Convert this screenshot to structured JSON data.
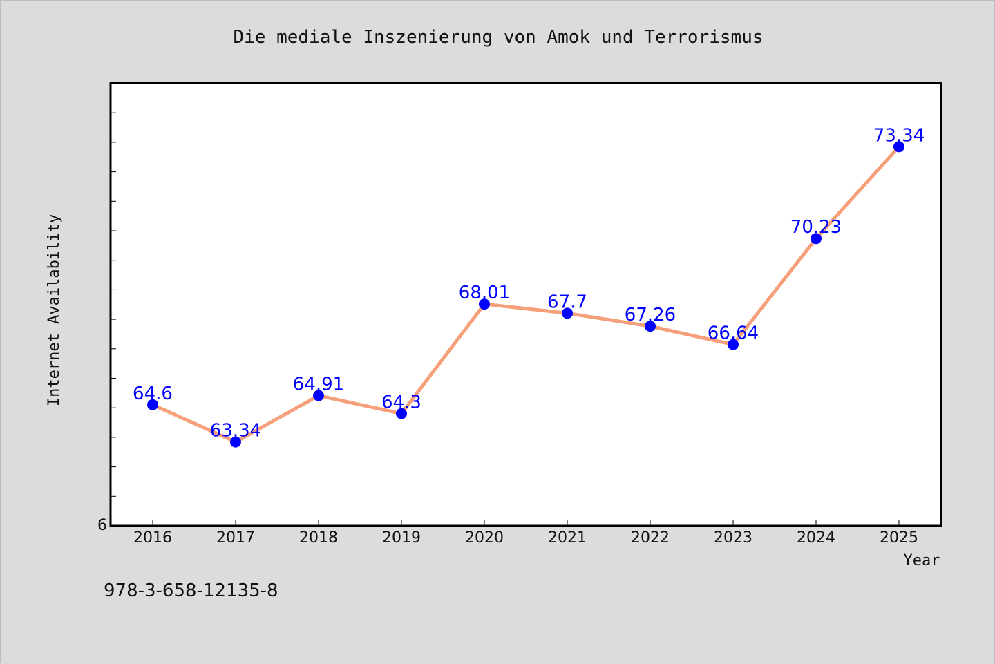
{
  "chart_data": {
    "type": "line",
    "title": "Die mediale Inszenierung von Amok und Terrorismus",
    "xlabel": "Year",
    "ylabel": "Internet Availability",
    "x": [
      "2016",
      "2017",
      "2018",
      "2019",
      "2020",
      "2021",
      "2022",
      "2023",
      "2024",
      "2025"
    ],
    "series": [
      {
        "values": [
          64.6,
          63.34,
          64.91,
          64.3,
          68.01,
          67.7,
          67.26,
          66.64,
          70.23,
          73.34
        ],
        "labels": [
          "64.6",
          "63.34",
          "64.91",
          "64.3",
          "68.01",
          "67.7",
          "67.26",
          "66.64",
          "70.23",
          "73.34"
        ]
      }
    ],
    "ylim": [
      60.5,
      75.5
    ],
    "y_tick_label": "6",
    "grid": false,
    "line_color": "#f5a07a",
    "marker_color": "#0000ff",
    "label_color": "#0000ff"
  },
  "footer_text": "978-3-658-12135-8"
}
